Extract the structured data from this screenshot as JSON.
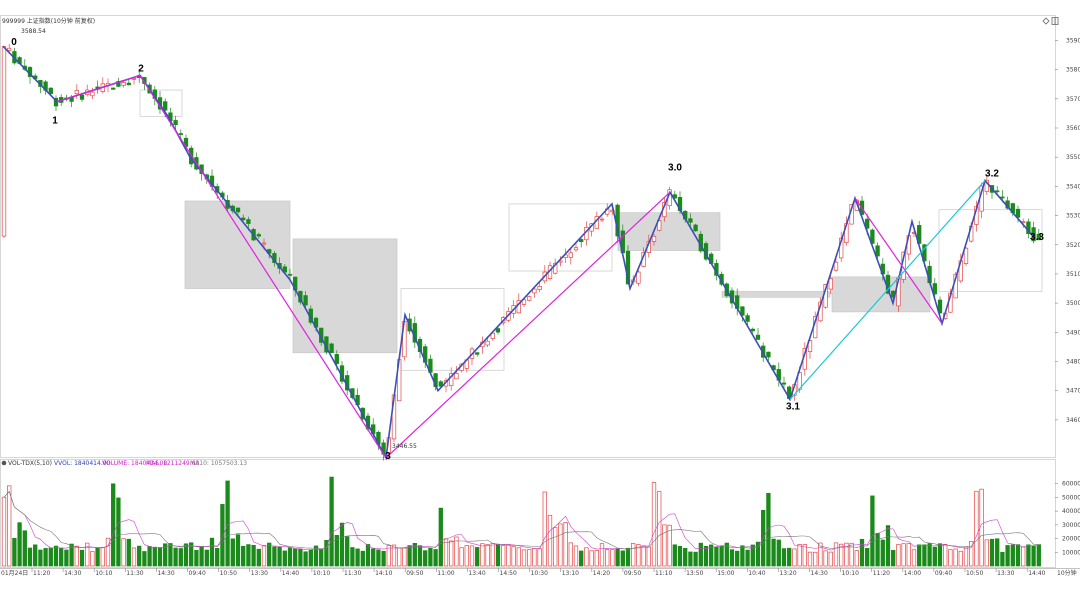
{
  "header": {
    "main_title": "999999 上证指数(10分钟 前复权)",
    "high_label": "3588.54",
    "icons": [
      "diamond-icon",
      "window-icon"
    ]
  },
  "volume_header": {
    "indicator": "VOL-TDX(5,10)",
    "vvol": "VVOL: 1840414.00",
    "volume": "VOLUME: 1840414.00",
    "ma5": "MA5: 1211249.63",
    "ma10": "MA10: 1057503.13"
  },
  "timeframe_label": "10分钟",
  "colors": {
    "up": "#e84545",
    "down": "#1a8a1a",
    "blue": "#3a4fb8",
    "magenta": "#e020e0",
    "cyan": "#20c8d8",
    "box_fill": "#d8d8d8",
    "ma5": "#cc44cc",
    "ma10": "#777777"
  },
  "chart_data": {
    "type": "candlestick",
    "title": "999999 上证指数(10分钟 前复权)",
    "price_axis": {
      "ylim": [
        3449,
        3597
      ],
      "ticks": [
        3460,
        3470,
        3480,
        3490,
        3500,
        3510,
        3520,
        3530,
        3540,
        3550,
        3560,
        3570,
        3580,
        3590
      ]
    },
    "volume_axis": {
      "ylim": [
        0,
        70000
      ],
      "ticks": [
        10000,
        20000,
        30000,
        40000,
        50000,
        60000
      ]
    },
    "time_ticks": [
      "11:20",
      "14:30",
      "10:10",
      "11:30",
      "14:30",
      "09:40",
      "10:50",
      "13:30",
      "14:40",
      "10:10",
      "11:30",
      "14:10",
      "09:50",
      "11:00",
      "13:40",
      "14:50",
      "10:30",
      "13:10",
      "14:20",
      "09:50",
      "11:10",
      "13:50",
      "15:00",
      "10:40",
      "13:20",
      "14:30",
      "10:10",
      "11:20",
      "14:00",
      "09:40",
      "10:50",
      "13:30",
      "14:40"
    ],
    "time_start_label": "01月24日",
    "marks": {
      "high": 3588.54,
      "low": 3446.55
    },
    "wave_labels": [
      {
        "text": "0",
        "price": 3587
      },
      {
        "text": "1",
        "price": 3565
      },
      {
        "text": "2",
        "price": 3578
      },
      {
        "text": "3",
        "price": 3450
      },
      {
        "text": "3.0",
        "price": 3544
      },
      {
        "text": "3.1",
        "price": 3467
      },
      {
        "text": "3.2",
        "price": 3542
      },
      {
        "text": "3.3",
        "price": 3525
      }
    ],
    "price_pivots": [
      3588,
      3569,
      3578,
      3564,
      3550,
      3508,
      3447,
      3496,
      3470,
      3534,
      3505,
      3538,
      3467,
      3536,
      3500,
      3528,
      3493,
      3542,
      3523
    ]
  }
}
